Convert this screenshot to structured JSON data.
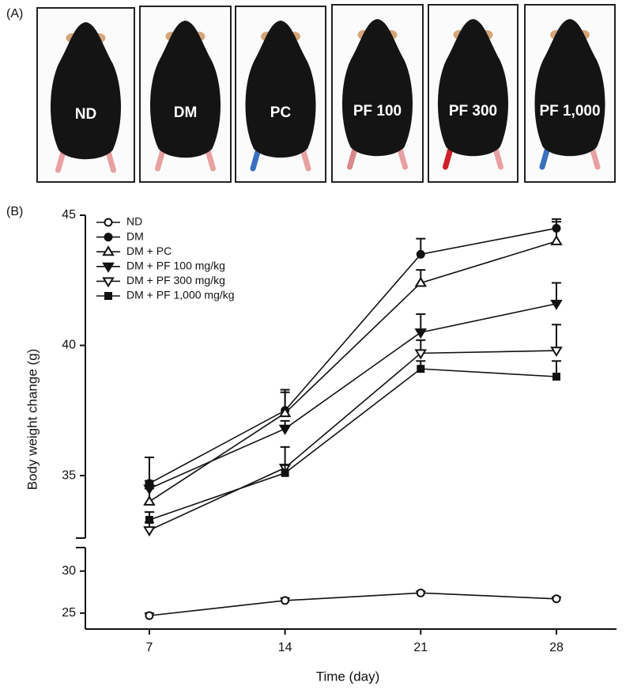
{
  "panel_a": {
    "label": "(A)",
    "images": [
      "ND",
      "DM",
      "PC",
      "PF 100",
      "PF 300",
      "PF 1,000"
    ]
  },
  "chart_data": {
    "type": "line",
    "panel_label": "(B)",
    "x_label": "Time (day)",
    "y_label": "Body weight change (g)",
    "x": [
      7,
      14,
      21,
      28
    ],
    "xlim": [
      3.7,
      31.1
    ],
    "xticks": [
      7,
      14,
      21,
      28
    ],
    "ylim_lower": [
      23.1,
      32.8
    ],
    "ylim_upper": [
      32.6,
      45
    ],
    "yticks": [
      25,
      30,
      35,
      40,
      45
    ],
    "legend": "upper left",
    "series": [
      {
        "name": "ND",
        "color": "#111111",
        "marker": "circle-open",
        "values": [
          24.7,
          26.5,
          27.4,
          26.7
        ],
        "errors": [
          0.3,
          0.3,
          0.2,
          0.2
        ]
      },
      {
        "name": "DM",
        "color": "#111111",
        "marker": "circle",
        "values": [
          34.7,
          37.5,
          43.5,
          44.5
        ],
        "errors": [
          1.0,
          0.8,
          0.6,
          0.35
        ]
      },
      {
        "name": "DM + PC",
        "color": "#111111",
        "marker": "triangle-up-open",
        "values": [
          34.0,
          37.4,
          42.4,
          44.0
        ],
        "errors": [
          0.5,
          0.8,
          0.5,
          0.75
        ]
      },
      {
        "name": "DM + PF 100 mg/kg",
        "color": "#111111",
        "marker": "triangle-down",
        "values": [
          34.5,
          36.8,
          40.5,
          41.6
        ],
        "errors": [
          0.3,
          0.3,
          0.7,
          0.8
        ]
      },
      {
        "name": "DM + PF 300 mg/kg",
        "color": "#111111",
        "marker": "triangle-down-open",
        "values": [
          32.9,
          35.3,
          39.7,
          39.8
        ],
        "errors": [
          0.3,
          0.8,
          0.5,
          1.0
        ]
      },
      {
        "name": "DM + PF 1,000 mg/kg",
        "color": "#111111",
        "marker": "square",
        "values": [
          33.3,
          35.1,
          39.1,
          38.8
        ],
        "errors": [
          0.3,
          0.3,
          0.3,
          0.6
        ]
      }
    ]
  }
}
